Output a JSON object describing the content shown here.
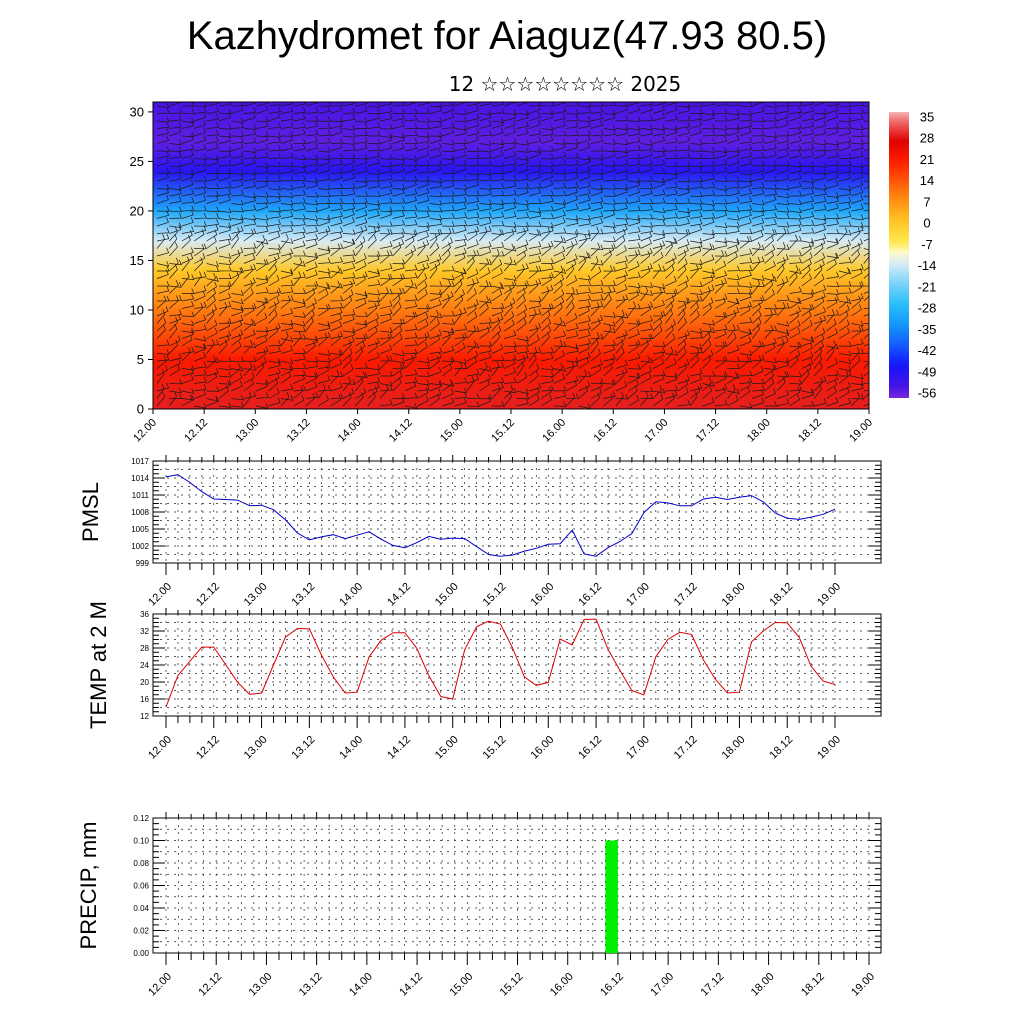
{
  "header": {
    "title": "Kazhydromet for Aiaguz(47.93 80.5)",
    "subtitle": "12 ☆☆☆☆☆☆☆☆ 2025"
  },
  "colors": {
    "pmsl_line": "#0000cc",
    "temp_line": "#dd0000",
    "precip_bar": "#00ee00"
  },
  "chart_data": [
    {
      "type": "heatmap",
      "x_tick_labels": [
        "12.00",
        "12.12",
        "13.00",
        "13.12",
        "14.00",
        "14.12",
        "15.00",
        "15.12",
        "16.00",
        "16.12",
        "17.00",
        "17.12",
        "18.00",
        "18.12",
        "19.00"
      ],
      "y_ticks": [
        0,
        5,
        10,
        15,
        20,
        25,
        30
      ],
      "ylim": [
        0,
        31
      ],
      "colorbar": {
        "labels": [
          "35",
          "28",
          "21",
          "14",
          "7",
          "0",
          "-7",
          "-14",
          "-21",
          "-28",
          "-35",
          "-42",
          "-49",
          "-56"
        ],
        "range": [
          -60,
          38
        ]
      },
      "overlay": "wind barbs",
      "levels_approx_temp": [
        {
          "level": 0,
          "value": 30
        },
        {
          "level": 5,
          "value": 22
        },
        {
          "level": 10,
          "value": 10
        },
        {
          "level": 14,
          "value": 0
        },
        {
          "level": 17,
          "value": -14
        },
        {
          "level": 20,
          "value": -32
        },
        {
          "level": 24,
          "value": -52
        },
        {
          "level": 27,
          "value": -58
        },
        {
          "level": 31,
          "value": -56
        }
      ]
    },
    {
      "type": "line",
      "ylabel": "PMSL",
      "x_tick_labels": [
        "12.00",
        "12.12",
        "13.00",
        "13.12",
        "14.00",
        "14.12",
        "15.00",
        "15.12",
        "16.00",
        "16.12",
        "17.00",
        "17.12",
        "18.00",
        "18.12",
        "19.00"
      ],
      "y_ticks": [
        999,
        1002,
        1005,
        1008,
        1011,
        1014,
        1017
      ],
      "ylim": [
        999,
        1017
      ],
      "x_step_hours": 3,
      "values": [
        1014.2,
        1014.6,
        1013.2,
        1011.6,
        1010.3,
        1010.2,
        1010.1,
        1009.1,
        1009.2,
        1008.4,
        1006.6,
        1004.3,
        1003.1,
        1003.6,
        1004.0,
        1003.3,
        1003.9,
        1004.5,
        1003.2,
        1002.1,
        1001.7,
        1002.6,
        1003.7,
        1003.2,
        1003.4,
        1003.3,
        1001.9,
        1000.5,
        1000.2,
        1000.4,
        1001.1,
        1001.6,
        1002.3,
        1002.4,
        1004.8,
        1000.6,
        1000.2,
        1001.7,
        1002.8,
        1004.2,
        1007.9,
        1009.8,
        1009.6,
        1009.1,
        1009.1,
        1010.3,
        1010.6,
        1010.2,
        1010.6,
        1010.9,
        1009.8,
        1007.8,
        1006.9,
        1006.7,
        1007.1,
        1007.6,
        1008.5
      ]
    },
    {
      "type": "line",
      "ylabel": "TEMP at 2 M",
      "x_tick_labels": [
        "12.00",
        "12.12",
        "13.00",
        "13.12",
        "14.00",
        "14.12",
        "15.00",
        "15.12",
        "16.00",
        "16.12",
        "17.00",
        "17.12",
        "18.00",
        "18.12",
        "19.00"
      ],
      "y_ticks": [
        12,
        16,
        20,
        24,
        28,
        32,
        36
      ],
      "ylim": [
        12,
        36
      ],
      "x_step_hours": 3,
      "values": [
        14.1,
        21.5,
        24.9,
        28.2,
        28.2,
        24.1,
        19.9,
        17.1,
        17.4,
        24.0,
        30.6,
        32.6,
        32.5,
        26.4,
        21.2,
        17.4,
        17.6,
        25.9,
        29.8,
        31.6,
        31.6,
        27.9,
        21.5,
        16.6,
        16.0,
        27.6,
        33.0,
        34.3,
        33.6,
        28.1,
        21.2,
        19.2,
        19.9,
        30.1,
        28.7,
        34.7,
        34.8,
        27.7,
        22.7,
        18.0,
        17.0,
        25.9,
        30.0,
        31.7,
        31.2,
        25.1,
        20.6,
        17.4,
        17.6,
        29.4,
        32.0,
        34.0,
        33.9,
        30.5,
        23.7,
        20.2,
        19.4
      ]
    },
    {
      "type": "bar",
      "ylabel": "PRECIP, mm",
      "x_tick_labels": [
        "12.00",
        "12.12",
        "13.00",
        "13.12",
        "14.00",
        "14.12",
        "15.00",
        "15.12",
        "16.00",
        "16.12",
        "17.00",
        "17.12",
        "18.00",
        "18.12",
        "19.00"
      ],
      "y_ticks": [
        "0.00",
        "0.02",
        "0.04",
        "0.06",
        "0.08",
        "0.10",
        "0.12"
      ],
      "ylim": [
        0,
        0.12
      ],
      "bars": [
        {
          "x_hour": 105,
          "width_hours": 3,
          "value": 0.1
        }
      ]
    }
  ]
}
